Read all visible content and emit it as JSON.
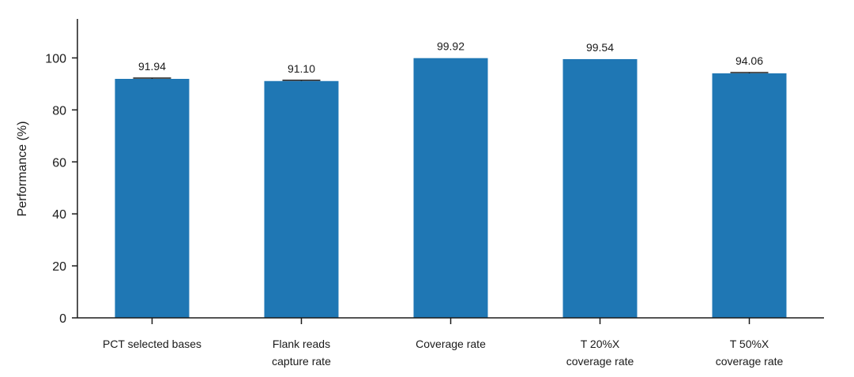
{
  "chart_data": {
    "type": "bar",
    "categories": [
      [
        "PCT selected bases"
      ],
      [
        "Flank reads",
        "capture rate"
      ],
      [
        "Coverage rate"
      ],
      [
        "T 20%X",
        "coverage rate"
      ],
      [
        "T 50%X",
        "coverage rate"
      ]
    ],
    "values": [
      91.94,
      91.1,
      99.92,
      99.54,
      94.06
    ],
    "value_labels": [
      "91.94",
      "91.10",
      "99.92",
      "99.54",
      "94.06"
    ],
    "error": [
      0.3,
      0.3,
      0,
      0,
      0.3
    ],
    "ylabel": "Performance (%)",
    "ylim": [
      0,
      115
    ],
    "yticks": [
      0,
      20,
      40,
      60,
      80,
      100
    ],
    "grid": false,
    "bar_color": "#1f77b4"
  }
}
